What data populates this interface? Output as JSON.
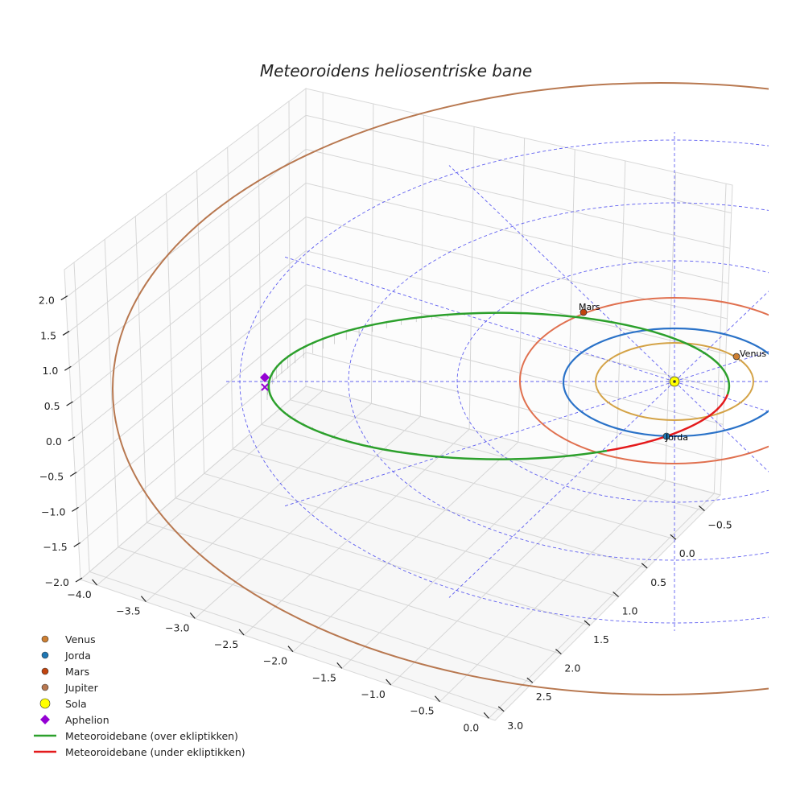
{
  "chart_data": {
    "type": "line",
    "title": "Meteoroidens heliosentriske bane",
    "view": "3d",
    "axes": {
      "z": {
        "ticks": [
          "2.0",
          "1.5",
          "1.0",
          "0.5",
          "0.0",
          "−0.5",
          "−1.0",
          "−1.5",
          "−2.0"
        ],
        "range": [
          -2.0,
          2.0
        ]
      },
      "x": {
        "ticks": [
          "−4.0",
          "−3.5",
          "−3.0",
          "−2.5",
          "−2.0",
          "−1.5",
          "−1.0",
          "−0.5",
          "0.0"
        ],
        "range": [
          -4.2,
          0.1
        ]
      },
      "y": {
        "ticks": [
          "−0.5",
          "0.0",
          "0.5",
          "1.0",
          "1.5",
          "2.0",
          "2.5",
          "3.0"
        ],
        "range": [
          -0.8,
          3.2
        ]
      },
      "grid": true
    },
    "planets": [
      {
        "name": "Venus",
        "orbit_radius_au": 0.72,
        "color": "#cd7f32",
        "orbit_color": "#d4a347",
        "label": "Venus"
      },
      {
        "name": "Jorda",
        "orbit_radius_au": 1.0,
        "color": "#1f77b4",
        "orbit_color": "#2a72c8",
        "label": "Jorda"
      },
      {
        "name": "Mars",
        "orbit_radius_au": 1.52,
        "color": "#c1440e",
        "orbit_color": "#e0704f",
        "label": "Mars"
      },
      {
        "name": "Jupiter",
        "orbit_radius_au": 5.2,
        "color": "#b87850",
        "orbit_color": "#b87850"
      }
    ],
    "sun": {
      "name": "Sola",
      "color": "#ffff00"
    },
    "aphelion": {
      "name": "Aphelion",
      "color": "#9400d3"
    },
    "meteoroid": {
      "series": [
        {
          "name": "Meteoroidebane (over ekliptikken)",
          "color": "#2ca02c"
        },
        {
          "name": "Meteoroidebane (under ekliptikken)",
          "color": "#e41a1c"
        }
      ]
    },
    "ecliptic_grid_color": "#4444ee",
    "legend": {
      "position": "bottom-left",
      "entries": [
        "Venus",
        "Jorda",
        "Mars",
        "Jupiter",
        "Sola",
        "Aphelion",
        "Meteoroidebane (over ekliptikken)",
        "Meteoroidebane (under ekliptikken)"
      ]
    }
  }
}
